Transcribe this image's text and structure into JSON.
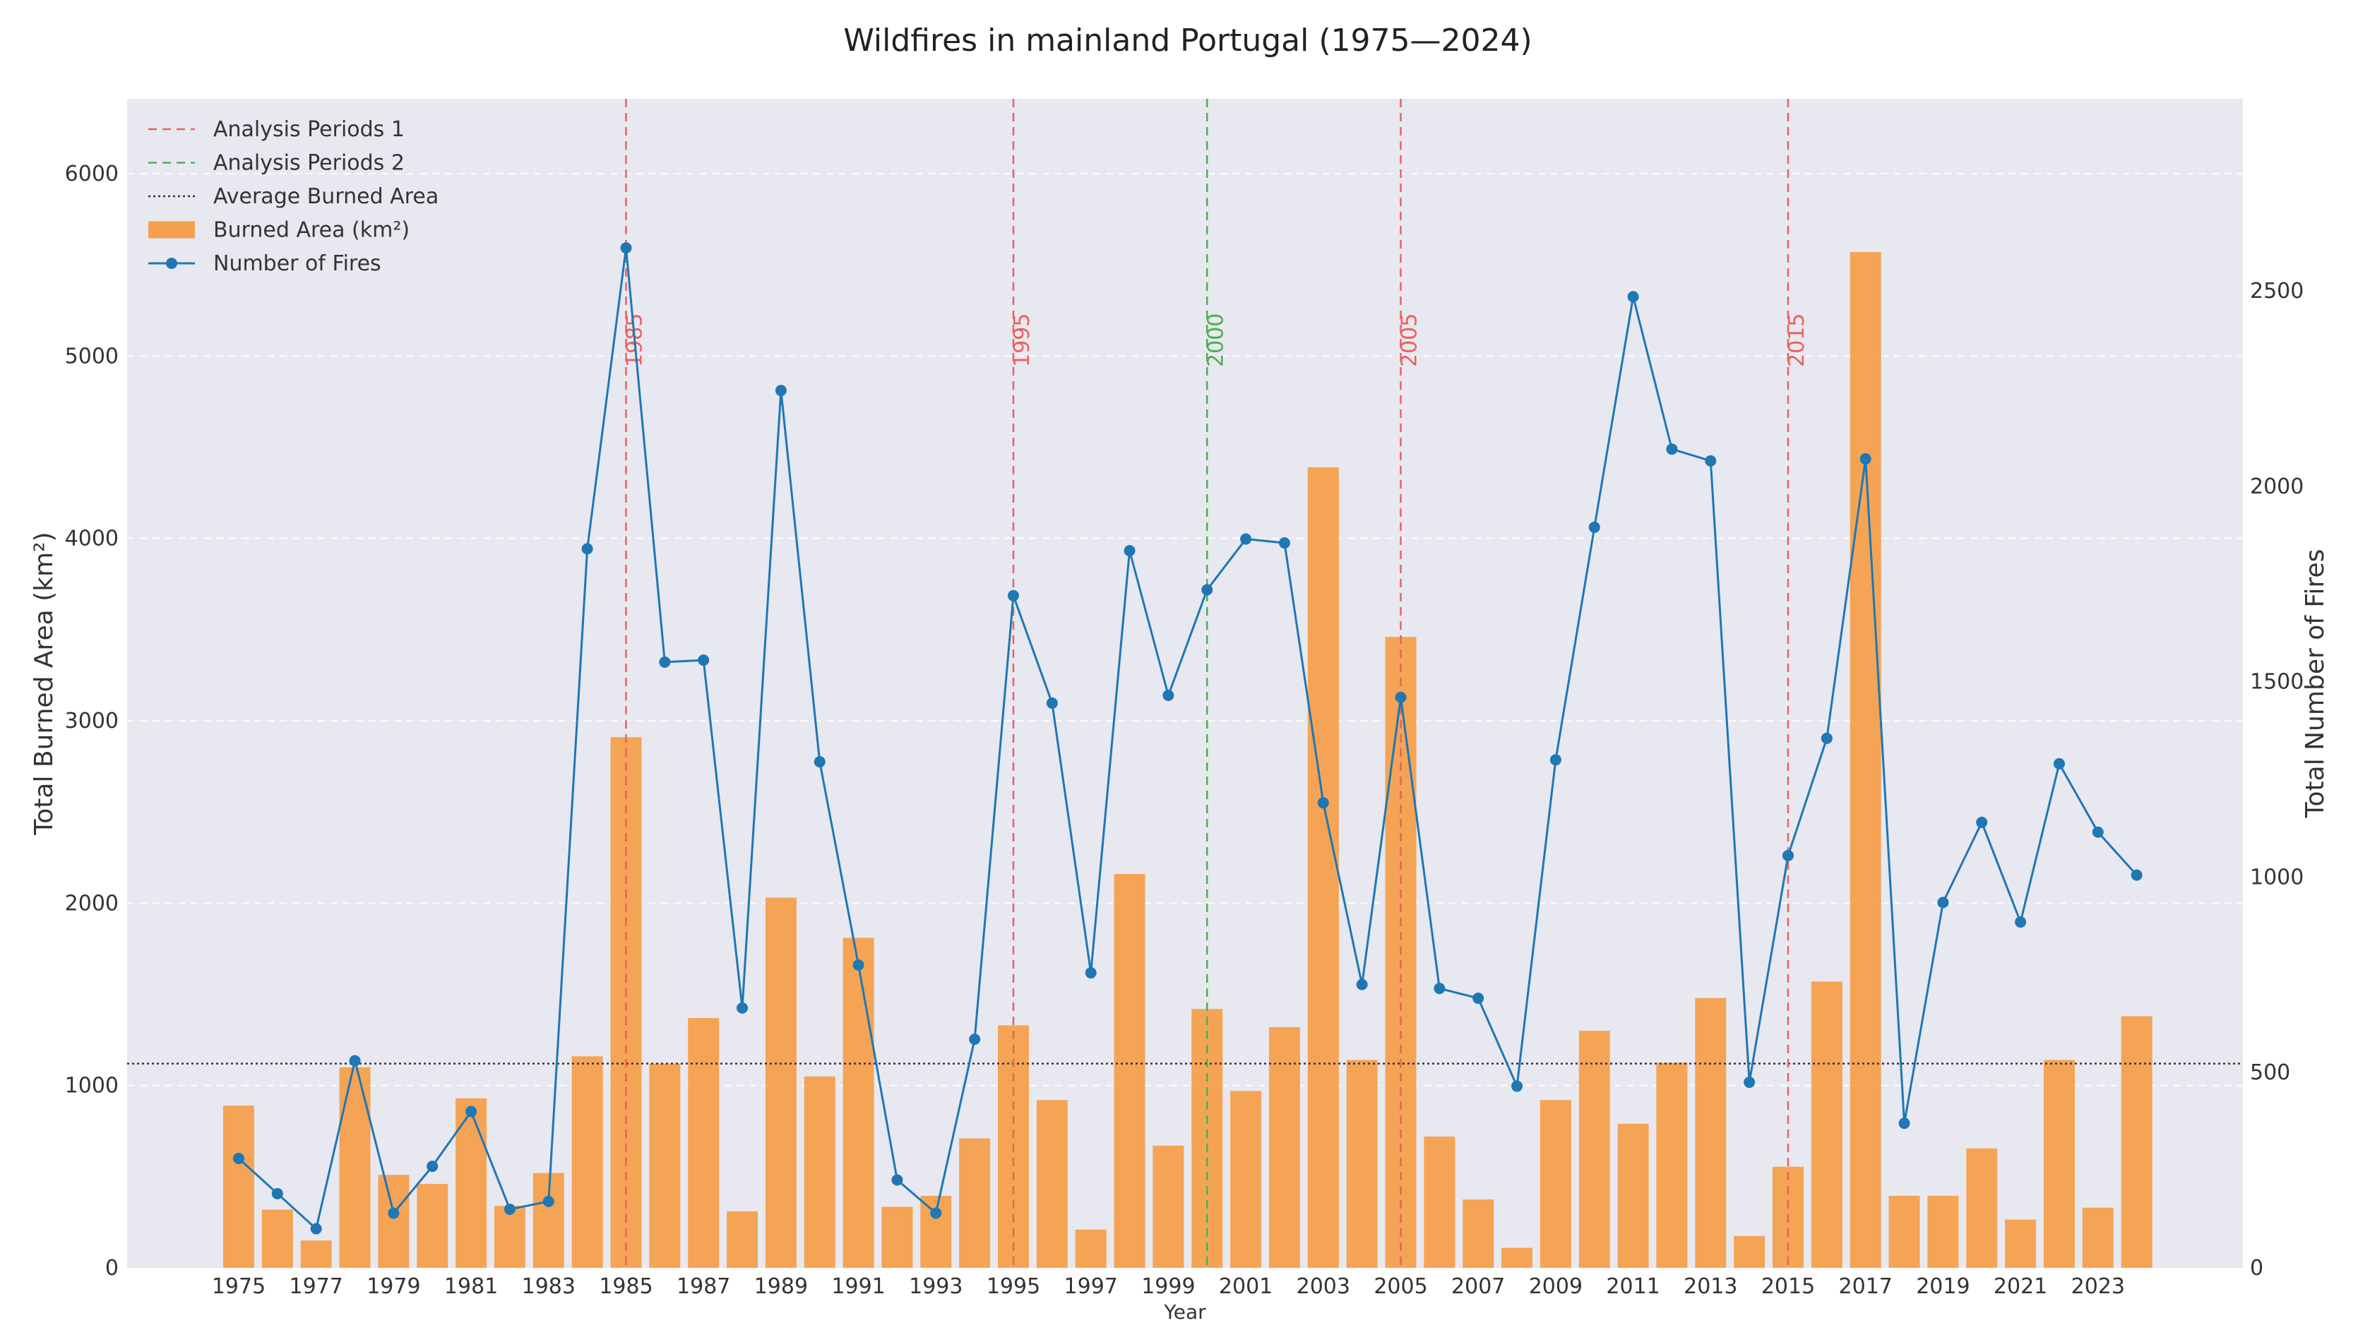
{
  "chart_data": {
    "type": "bar+line",
    "title": "Wildfires in mainland Portugal (1975—2024)",
    "xlabel": "Year",
    "ylabel_left": "Total Burned Area (km²)",
    "ylabel_right": "Total Number of Fires",
    "ylim_left": [
      0,
      6400
    ],
    "ylim_right": [
      0,
      3000
    ],
    "left_ticks": [
      0,
      1000,
      2000,
      3000,
      4000,
      5000,
      6000
    ],
    "right_ticks": [
      0,
      500,
      1000,
      1500,
      2000,
      2500
    ],
    "years": [
      1975,
      1976,
      1977,
      1978,
      1979,
      1980,
      1981,
      1982,
      1983,
      1984,
      1985,
      1986,
      1987,
      1988,
      1989,
      1990,
      1991,
      1992,
      1993,
      1994,
      1995,
      1996,
      1997,
      1998,
      1999,
      2000,
      2001,
      2002,
      2003,
      2004,
      2005,
      2006,
      2007,
      2008,
      2009,
      2010,
      2011,
      2012,
      2013,
      2014,
      2015,
      2016,
      2017,
      2018,
      2019,
      2020,
      2021,
      2022,
      2023,
      2024
    ],
    "x_tick_labels": [
      "1975",
      "1977",
      "1979",
      "1981",
      "1983",
      "1985",
      "1987",
      "1989",
      "1991",
      "1993",
      "1995",
      "1997",
      "1999",
      "2001",
      "2003",
      "2005",
      "2007",
      "2009",
      "2011",
      "2013",
      "2015",
      "2017",
      "2019",
      "2021",
      "2023"
    ],
    "series": [
      {
        "name": "Burned Area (km²)",
        "axis": "left",
        "type": "bar",
        "color": "#f5a04c",
        "values": [
          890,
          320,
          150,
          1100,
          510,
          460,
          930,
          340,
          520,
          1160,
          2910,
          1120,
          1370,
          310,
          2030,
          1050,
          1810,
          335,
          395,
          710,
          1330,
          920,
          210,
          2160,
          670,
          1420,
          970,
          1320,
          4390,
          1140,
          3460,
          720,
          375,
          110,
          920,
          1300,
          790,
          1125,
          1480,
          175,
          555,
          1570,
          5570,
          395,
          395,
          655,
          265,
          1140,
          330,
          1380
        ]
      },
      {
        "name": "Number of Fires",
        "axis": "right",
        "type": "line",
        "color": "#1f77b4",
        "values": [
          280,
          190,
          100,
          530,
          140,
          260,
          400,
          150,
          170,
          1840,
          2610,
          1550,
          1555,
          665,
          2245,
          1295,
          775,
          225,
          140,
          585,
          1720,
          1445,
          755,
          1835,
          1465,
          1735,
          1865,
          1855,
          1190,
          725,
          1460,
          715,
          690,
          465,
          1300,
          1895,
          2485,
          2095,
          2065,
          475,
          1055,
          1355,
          2070,
          370,
          935,
          1140,
          885,
          1290,
          1115,
          1005
        ]
      }
    ],
    "reference_lines": [
      {
        "year": 1985,
        "label": "1985",
        "group": "Analysis Periods 1",
        "color": "#e8625e"
      },
      {
        "year": 1995,
        "label": "1995",
        "group": "Analysis Periods 1",
        "color": "#e8625e"
      },
      {
        "year": 2000,
        "label": "2000",
        "group": "Analysis Periods 2",
        "color": "#4caf50"
      },
      {
        "year": 2005,
        "label": "2005",
        "group": "Analysis Periods 1",
        "color": "#e8625e"
      },
      {
        "year": 2015,
        "label": "2015",
        "group": "Analysis Periods 1",
        "color": "#e8625e"
      }
    ],
    "average_burned_area": 1120,
    "legend": {
      "position": "top-left",
      "entries": [
        {
          "label": "Analysis Periods 1",
          "kind": "dashed",
          "color": "#e8625e"
        },
        {
          "label": "Analysis Periods 2",
          "kind": "dashed",
          "color": "#4caf50"
        },
        {
          "label": "Average Burned Area",
          "kind": "dotted",
          "color": "#333333"
        },
        {
          "label": "Burned Area (km²)",
          "kind": "bar",
          "color": "#f5a04c"
        },
        {
          "label": "Number of Fires",
          "kind": "line",
          "color": "#1f77b4"
        }
      ]
    }
  }
}
